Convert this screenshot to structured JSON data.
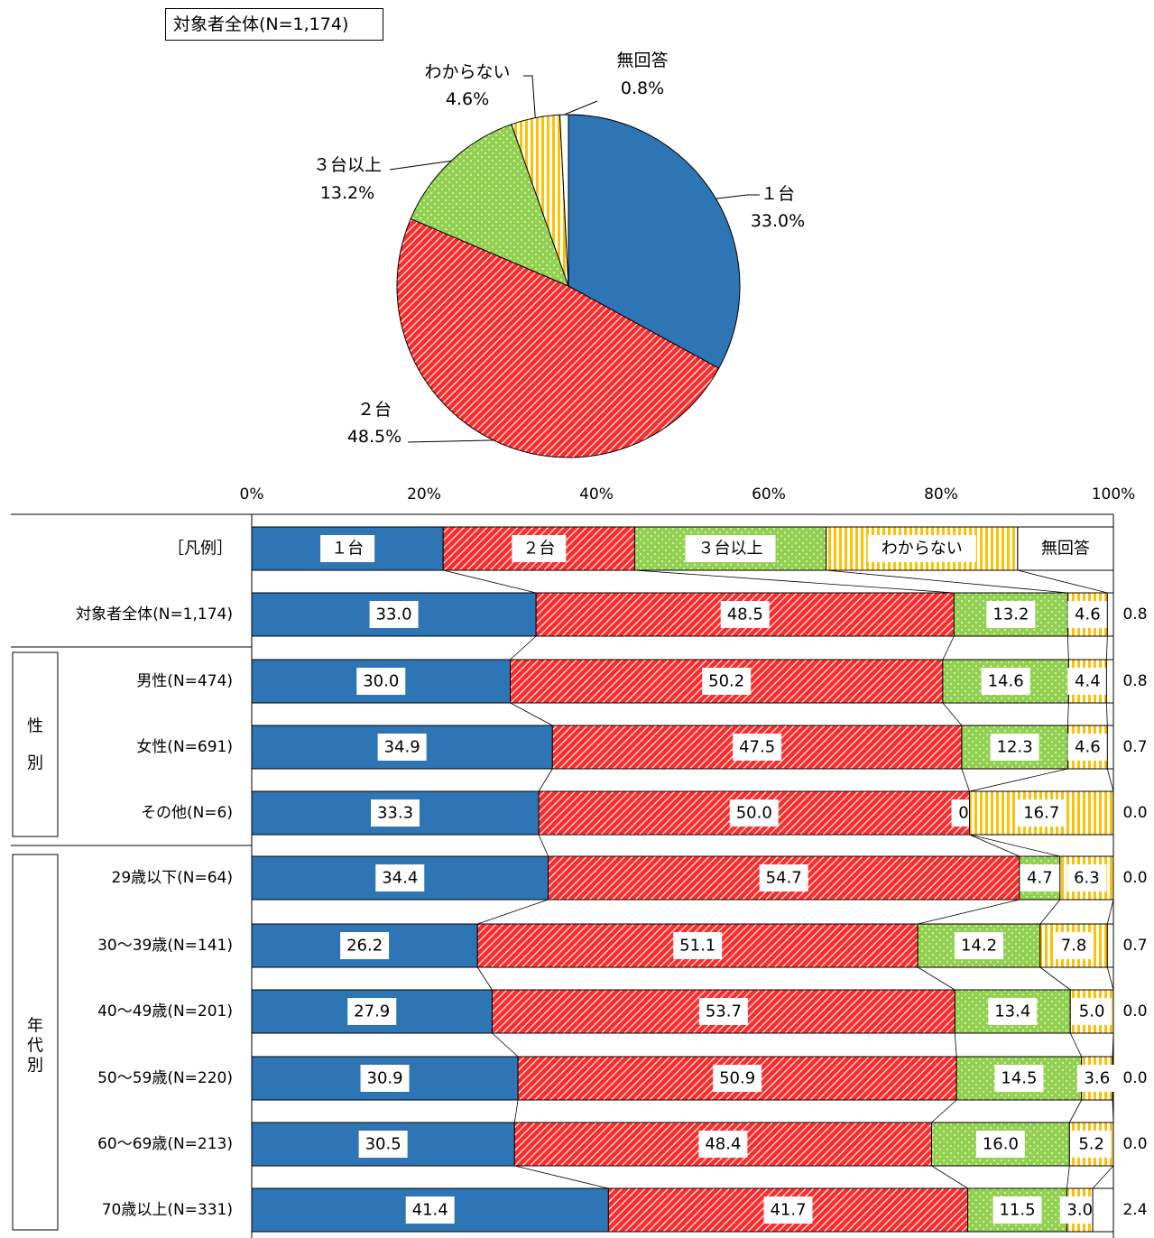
{
  "colors": {
    "one": "#2e75b6",
    "two": "#ff2b2b",
    "three": "#92d050",
    "unknown": "#ffc000",
    "none": "#ffffff"
  },
  "chart_data": [
    {
      "type": "pie",
      "title": "対象者全体(N=1,174)",
      "categories": [
        "１台",
        "２台",
        "３台以上",
        "わからない",
        "無回答"
      ],
      "values": [
        33.0,
        48.5,
        13.2,
        4.6,
        0.8
      ],
      "value_labels": [
        "33.0%",
        "48.5%",
        "13.2%",
        "4.6%",
        "0.8%"
      ]
    },
    {
      "type": "bar",
      "orientation": "horizontal",
      "stacked": "100%",
      "x_ticks": [
        "0%",
        "20%",
        "40%",
        "60%",
        "80%",
        "100%"
      ],
      "legend_row_label": "［凡例］",
      "legend": [
        "１台",
        "２台",
        "３台以上",
        "わからない",
        "無回答"
      ],
      "groups": [
        {
          "label": "",
          "rows": [
            1
          ]
        },
        {
          "label": "性別",
          "rows": [
            2,
            3,
            4
          ]
        },
        {
          "label": "年代別",
          "rows": [
            5,
            6,
            7,
            8,
            9,
            10
          ]
        }
      ],
      "categories": [
        "対象者全体(N=1,174)",
        "男性(N=474)",
        "女性(N=691)",
        "その他(N=6)",
        "29歳以下(N=64)",
        "30～39歳(N=141)",
        "40～49歳(N=201)",
        "50～59歳(N=220)",
        "60～69歳(N=213)",
        "70歳以上(N=331)"
      ],
      "series": [
        {
          "name": "１台",
          "values": [
            33.0,
            30.0,
            34.9,
            33.3,
            34.4,
            26.2,
            27.9,
            30.9,
            30.5,
            41.4
          ],
          "labels": [
            "33.0",
            "30.0",
            "34.9",
            "33.3",
            "34.4",
            "26.2",
            "27.9",
            "30.9",
            "30.5",
            "41.4"
          ]
        },
        {
          "name": "２台",
          "values": [
            48.5,
            50.2,
            47.5,
            50.0,
            54.7,
            51.1,
            53.7,
            50.9,
            48.4,
            41.7
          ],
          "labels": [
            "48.5",
            "50.2",
            "47.5",
            "50.0",
            "54.7",
            "51.1",
            "53.7",
            "50.9",
            "48.4",
            "41.7"
          ]
        },
        {
          "name": "３台以上",
          "values": [
            13.2,
            14.6,
            12.3,
            0.0,
            4.7,
            14.2,
            13.4,
            14.5,
            16.0,
            11.5
          ],
          "labels": [
            "13.2",
            "14.6",
            "12.3",
            "0.0",
            "4.7",
            "14.2",
            "13.4",
            "14.5",
            "16.0",
            "11.5"
          ]
        },
        {
          "name": "わからない",
          "values": [
            4.6,
            4.4,
            4.6,
            16.7,
            6.3,
            7.8,
            5.0,
            3.6,
            5.2,
            3.0
          ],
          "labels": [
            "4.6",
            "4.4",
            "4.6",
            "16.7",
            "6.3",
            "7.8",
            "5.0",
            "3.6",
            "5.2",
            "3.0"
          ]
        },
        {
          "name": "無回答",
          "values": [
            0.8,
            0.8,
            0.7,
            0.0,
            0.0,
            0.7,
            0.0,
            0.0,
            0.0,
            2.4
          ],
          "labels": [
            "0.8",
            "0.8",
            "0.7",
            "0.0",
            "0.0",
            "0.7",
            "0.0",
            "0.0",
            "0.0",
            "2.4"
          ]
        }
      ]
    }
  ]
}
